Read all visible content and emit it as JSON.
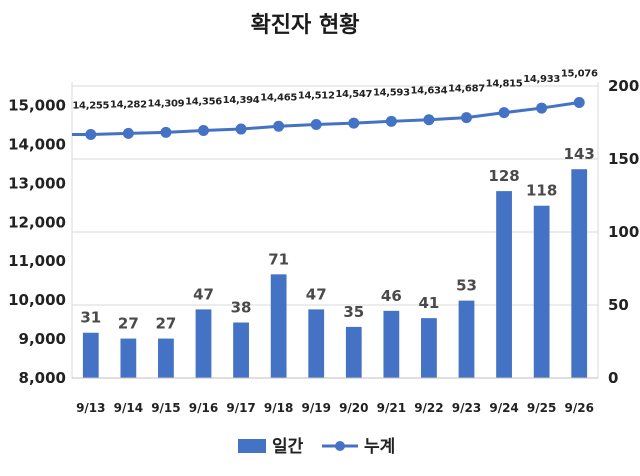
{
  "chart_data": {
    "type": "bar",
    "title": "확진자 현황",
    "categories": [
      "9/13",
      "9/14",
      "9/15",
      "9/16",
      "9/17",
      "9/18",
      "9/19",
      "9/20",
      "9/21",
      "9/22",
      "9/23",
      "9/24",
      "9/25",
      "9/26"
    ],
    "series": [
      {
        "name": "일간",
        "type": "bar",
        "axis": "right",
        "color": "#4472c4",
        "values": [
          31,
          27,
          27,
          47,
          38,
          71,
          47,
          35,
          46,
          41,
          53,
          128,
          118,
          143
        ]
      },
      {
        "name": "누계",
        "type": "line",
        "axis": "left",
        "color": "#4472c4",
        "values": [
          14255,
          14282,
          14309,
          14356,
          14394,
          14465,
          14512,
          14547,
          14593,
          14634,
          14687,
          14815,
          14933,
          15076
        ],
        "labels": [
          "14,255",
          "14,282",
          "14,309",
          "14,356",
          "14,394",
          "14,465",
          "14,512",
          "14,547",
          "14,593",
          "14,634",
          "14,687",
          "14,815",
          "14,933",
          "15,076"
        ]
      }
    ],
    "y_left": {
      "min": 8000,
      "max": 15500,
      "ticks": [
        8000,
        9000,
        10000,
        11000,
        12000,
        13000,
        14000,
        15000
      ],
      "tick_labels": [
        "8,000",
        "9,000",
        "10,000",
        "11,000",
        "12,000",
        "13,000",
        "14,000",
        "15,000"
      ]
    },
    "y_right": {
      "min": 0,
      "max": 200,
      "ticks": [
        0,
        50,
        100,
        150,
        200
      ],
      "tick_labels": [
        "0",
        "50",
        "100",
        "150",
        "200"
      ]
    },
    "grid": true,
    "legend": {
      "position": "bottom",
      "entries": [
        "일간",
        "누계"
      ]
    },
    "colors": {
      "bar": "#4472c4",
      "line": "#4472c4",
      "grid": "#d9d9d9"
    }
  }
}
